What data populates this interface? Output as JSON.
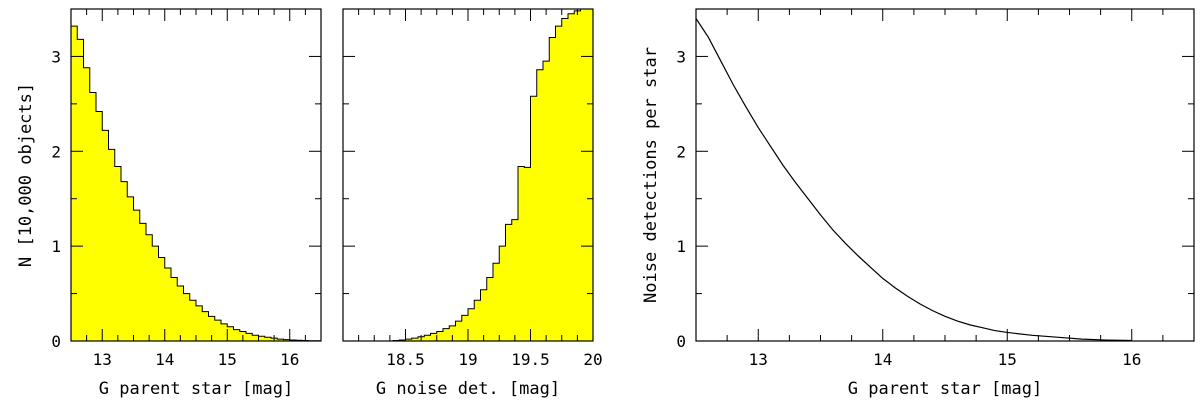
{
  "chart_data": [
    {
      "type": "bar",
      "style": "step-histogram",
      "fill_color": "#ffff00",
      "xlabel": "G parent star [mag]",
      "ylabel": "N [10,000 objects]",
      "xlim": [
        12.5,
        16.5
      ],
      "ylim": [
        0,
        3.5
      ],
      "xticks": [
        "13",
        "14",
        "15",
        "16"
      ],
      "yticks": [
        "0",
        "1",
        "2",
        "3"
      ],
      "bin_width": 0.1,
      "bin_start": 12.5,
      "values": [
        3.32,
        3.18,
        2.88,
        2.62,
        2.42,
        2.22,
        2.02,
        1.84,
        1.68,
        1.52,
        1.38,
        1.24,
        1.12,
        1.0,
        0.88,
        0.77,
        0.67,
        0.58,
        0.5,
        0.43,
        0.37,
        0.31,
        0.26,
        0.22,
        0.18,
        0.15,
        0.12,
        0.1,
        0.08,
        0.06,
        0.05,
        0.04,
        0.03,
        0.02,
        0.015,
        0.01,
        0.008,
        0.005,
        0.003,
        0.002
      ]
    },
    {
      "type": "bar",
      "style": "step-histogram",
      "fill_color": "#ffff00",
      "xlabel": "G noise det. [mag]",
      "xlim": [
        18.0,
        20.0
      ],
      "ylim": [
        0,
        3.5
      ],
      "xticks": [
        "18.5",
        "19",
        "19.5",
        "20"
      ],
      "bin_width": 0.05,
      "bin_start": 18.0,
      "values": [
        0,
        0,
        0,
        0,
        0,
        0,
        0,
        0,
        0.005,
        0.01,
        0.02,
        0.03,
        0.045,
        0.06,
        0.08,
        0.1,
        0.13,
        0.16,
        0.21,
        0.27,
        0.34,
        0.43,
        0.54,
        0.67,
        0.82,
        1.0,
        1.23,
        1.28,
        1.84,
        1.83,
        2.58,
        2.86,
        2.95,
        3.2,
        3.32,
        3.4,
        3.45,
        3.48,
        3.5,
        3.5
      ]
    },
    {
      "type": "line",
      "xlabel": "G parent star [mag]",
      "ylabel": "Noise detections per star",
      "xlim": [
        12.5,
        16.5
      ],
      "ylim": [
        0,
        3.5
      ],
      "xticks": [
        "13",
        "14",
        "15",
        "16"
      ],
      "yticks": [
        "0",
        "1",
        "2",
        "3"
      ],
      "series": [
        {
          "x": [
            12.5,
            12.6,
            12.7,
            12.8,
            12.9,
            13.0,
            13.1,
            13.2,
            13.3,
            13.4,
            13.5,
            13.6,
            13.7,
            13.8,
            13.9,
            14.0,
            14.1,
            14.2,
            14.3,
            14.4,
            14.5,
            14.6,
            14.7,
            14.8,
            14.9,
            15.0,
            15.2,
            15.4,
            15.6,
            15.8,
            16.0
          ],
          "y": [
            3.4,
            3.2,
            2.95,
            2.7,
            2.47,
            2.25,
            2.05,
            1.85,
            1.67,
            1.5,
            1.33,
            1.17,
            1.03,
            0.9,
            0.78,
            0.66,
            0.56,
            0.47,
            0.39,
            0.32,
            0.26,
            0.21,
            0.17,
            0.14,
            0.11,
            0.09,
            0.06,
            0.04,
            0.02,
            0.01,
            0.005
          ]
        }
      ]
    }
  ]
}
